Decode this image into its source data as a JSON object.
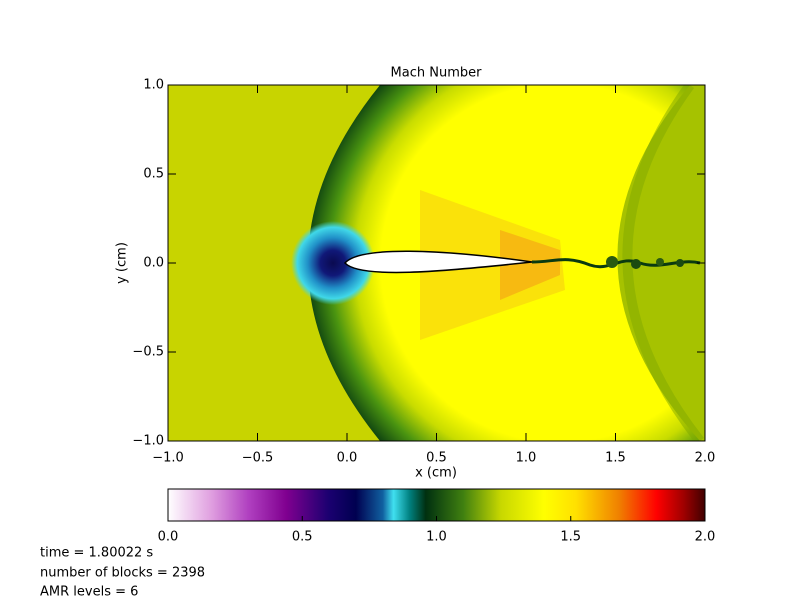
{
  "chart_data": {
    "type": "field",
    "title": "Mach Number",
    "x_label": "x (cm)",
    "y_label": "y (cm)",
    "xlim": [
      -1.0,
      2.0
    ],
    "ylim": [
      -1.0,
      1.0
    ],
    "xticks": [
      {
        "value": -1.0,
        "label": "−1.0"
      },
      {
        "value": -0.5,
        "label": "−0.5"
      },
      {
        "value": 0.0,
        "label": "0.0"
      },
      {
        "value": 0.5,
        "label": "0.5"
      },
      {
        "value": 1.0,
        "label": "1.0"
      },
      {
        "value": 1.5,
        "label": "1.5"
      },
      {
        "value": 2.0,
        "label": "2.0"
      }
    ],
    "yticks": [
      {
        "value": -1.0,
        "label": "−1.0"
      },
      {
        "value": -0.5,
        "label": "−0.5"
      },
      {
        "value": 0.0,
        "label": "0.0"
      },
      {
        "value": 0.5,
        "label": "0.5"
      },
      {
        "value": 1.0,
        "label": "1.0"
      }
    ],
    "colorbar": {
      "lim": [
        0.0,
        2.0
      ],
      "ticks": [
        {
          "value": 0.0,
          "label": "0.0"
        },
        {
          "value": 0.5,
          "label": "0.5"
        },
        {
          "value": 1.0,
          "label": "1.0"
        },
        {
          "value": 1.5,
          "label": "1.5"
        },
        {
          "value": 2.0,
          "label": "2.0"
        }
      ]
    },
    "annotations": [
      "time =   1.80022 s",
      "number of blocks =    2398",
      "AMR levels =     6"
    ]
  }
}
